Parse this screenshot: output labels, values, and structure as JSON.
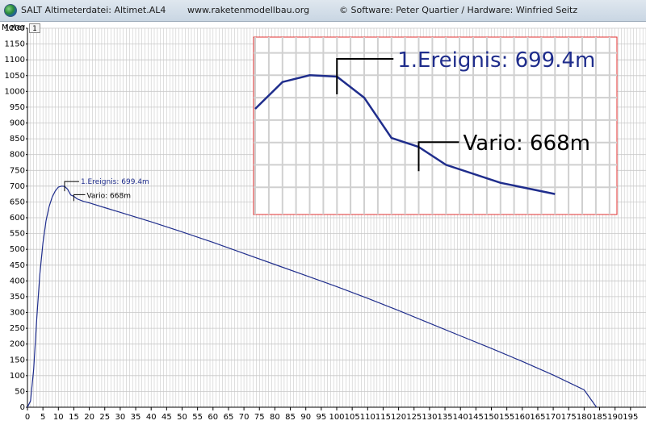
{
  "window": {
    "title": "SALT Altimeterdatei: Altimet.AL4",
    "website": "www.raketenmodellbau.org",
    "credits": "©  Software: Peter Quartier / Hardware: Winfried Seitz"
  },
  "colors": {
    "series": "#1f2d8c",
    "zoom_border": "#e03030",
    "grid": "#c8c8c8"
  },
  "icons": {
    "app": "globe-icon"
  },
  "chart_data": {
    "type": "line",
    "ylabel": "Meter",
    "ylim": [
      0,
      1200
    ],
    "xlim": [
      0,
      200
    ],
    "x_ticks": [
      0,
      5,
      10,
      15,
      20,
      25,
      30,
      35,
      40,
      45,
      50,
      55,
      60,
      65,
      70,
      75,
      80,
      85,
      90,
      95,
      100,
      105,
      110,
      115,
      120,
      125,
      130,
      135,
      140,
      145,
      150,
      155,
      160,
      165,
      170,
      175,
      180,
      185,
      190,
      195
    ],
    "y_ticks": [
      0,
      50,
      100,
      150,
      200,
      250,
      300,
      350,
      400,
      450,
      500,
      550,
      600,
      650,
      700,
      750,
      800,
      850,
      900,
      950,
      1000,
      1050,
      1100,
      1150,
      1200
    ],
    "grid": true,
    "series": [
      {
        "points": [
          [
            0,
            0
          ],
          [
            1,
            20
          ],
          [
            2,
            120
          ],
          [
            3,
            280
          ],
          [
            4,
            420
          ],
          [
            5,
            520
          ],
          [
            6,
            590
          ],
          [
            7,
            635
          ],
          [
            8,
            665
          ],
          [
            9,
            685
          ],
          [
            10,
            697
          ],
          [
            11,
            700
          ],
          [
            12,
            699.4
          ],
          [
            13,
            690
          ],
          [
            14,
            672
          ],
          [
            15,
            668
          ],
          [
            16,
            660
          ],
          [
            18,
            652
          ],
          [
            20,
            647
          ],
          [
            25,
            632
          ],
          [
            30,
            617
          ],
          [
            40,
            587
          ],
          [
            50,
            555
          ],
          [
            60,
            522
          ],
          [
            70,
            487
          ],
          [
            80,
            452
          ],
          [
            90,
            417
          ],
          [
            100,
            382
          ],
          [
            110,
            345
          ],
          [
            120,
            306
          ],
          [
            130,
            266
          ],
          [
            140,
            226
          ],
          [
            150,
            186
          ],
          [
            160,
            145
          ],
          [
            170,
            102
          ],
          [
            180,
            55
          ],
          [
            184,
            0
          ]
        ]
      }
    ],
    "annotations": [
      {
        "text": "1.Ereignis: 699.4m",
        "x": 12,
        "y": 699.4
      },
      {
        "text": "Vario: 668m",
        "x": 15,
        "y": 668
      }
    ],
    "axis_button": "1",
    "zoom_inset": {
      "present": true,
      "x_range": [
        9,
        17
      ]
    }
  }
}
